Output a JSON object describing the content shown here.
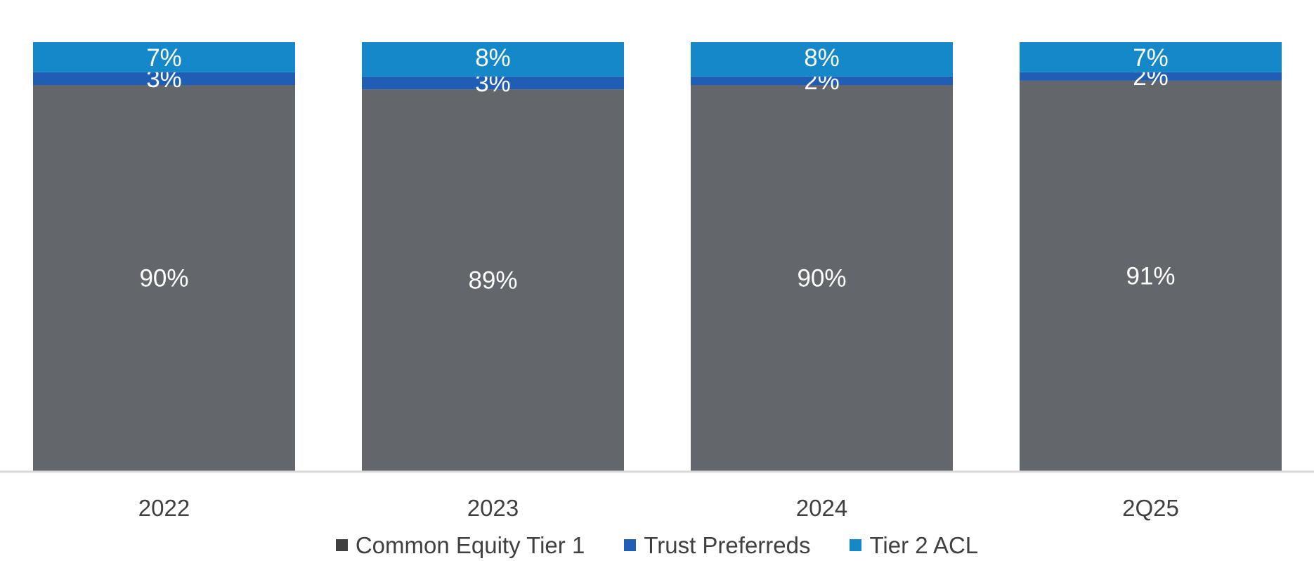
{
  "chart_data": {
    "type": "bar",
    "stacked": true,
    "categories": [
      "2022",
      "2023",
      "2024",
      "2Q25"
    ],
    "series": [
      {
        "name": "Common Equity Tier 1",
        "color": "#63676b",
        "values": [
          90,
          89,
          90,
          91
        ],
        "labels": [
          "90%",
          "89%",
          "90%",
          "91%"
        ]
      },
      {
        "name": "Trust Preferreds",
        "color": "#1f5eb4",
        "values": [
          3,
          3,
          2,
          2
        ],
        "labels": [
          "3%",
          "3%",
          "2%",
          "2%"
        ]
      },
      {
        "name": "Tier 2 ACL",
        "color": "#1488c8",
        "values": [
          7,
          8,
          8,
          7
        ],
        "labels": [
          "7%",
          "8%",
          "8%",
          "7%"
        ]
      }
    ],
    "ylim": [
      0,
      100
    ],
    "grid": false,
    "legend_position": "bottom",
    "title": "",
    "xlabel": "",
    "ylabel": ""
  }
}
